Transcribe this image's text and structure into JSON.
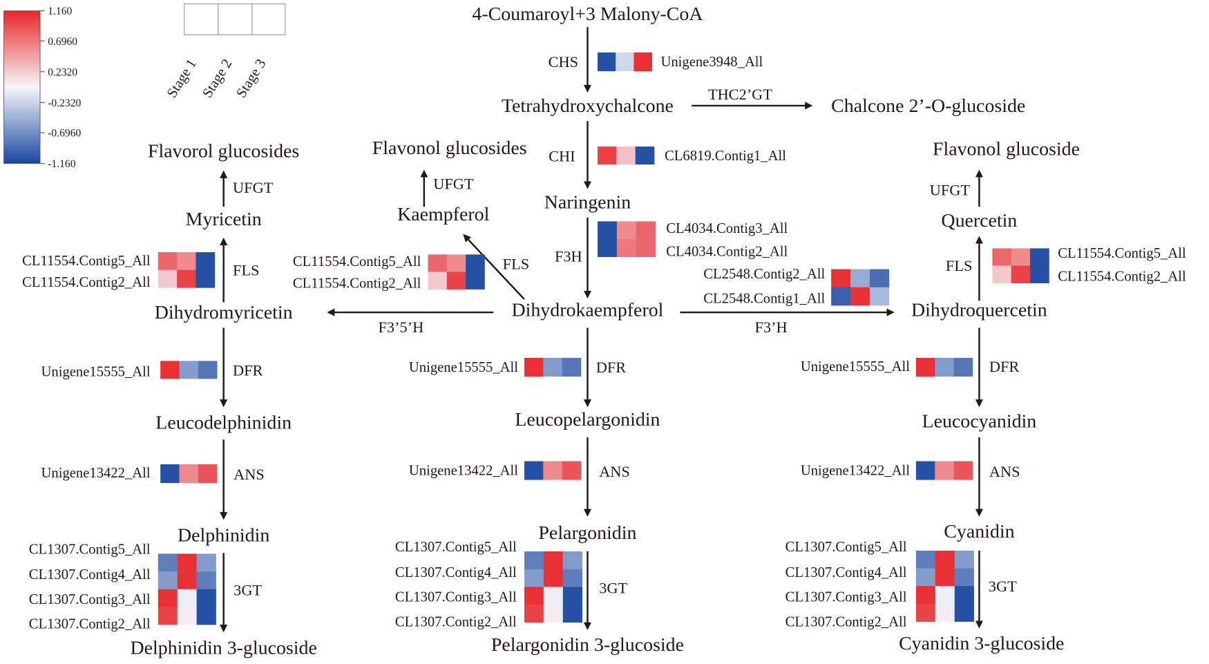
{
  "legend": {
    "ticks": [
      "1.160",
      "0.6960",
      "0.2320",
      "-0.2320",
      "-0.6960",
      "-1.160"
    ],
    "range": [
      -1.16,
      1.16
    ],
    "stages": [
      "Stage 1",
      "Stage 2",
      "Stage 3"
    ],
    "colors": {
      "low": "#1a48a0",
      "mid": "#f6f6fb",
      "high": "#e8262a"
    }
  },
  "metabolites": {
    "start": "4-Coumaroyl+3 Malony-CoA",
    "thc": "Tetrahydroxychalcone",
    "chalcone_glc": "Chalcone 2’-O-glucoside",
    "naringenin": "Naringenin",
    "dhk": "Dihydrokaempferol",
    "dhm": "Dihydromyricetin",
    "dhq": "Dihydroquercetin",
    "myricetin": "Myricetin",
    "kaempferol": "Kaempferol",
    "quercetin": "Quercetin",
    "flavorol_glc": "Flavorol glucosides",
    "flavonol_glcs": "Flavonol glucosides",
    "flavonol_glc": "Flavonol glucoside",
    "leucodelphinidin": "Leucodelphinidin",
    "leucopelargonidin": "Leucopelargonidin",
    "leucocyanidin": "Leucocyanidin",
    "delphinidin": "Delphinidin",
    "pelargonidin": "Pelargonidin",
    "cyanidin": "Cyanidin",
    "delphinidin_glc": "Delphinidin 3-glucoside",
    "pelargonidin_glc": "Pelargonidin 3-glucoside",
    "cyanidin_glc": "Cyanidin 3-glucoside"
  },
  "enzymes": {
    "chs": "CHS",
    "thc2gt": "THC2’GT",
    "chi": "CHI",
    "f3h": "F3H",
    "f35h": "F3’5’H",
    "f3ph": "F3’H",
    "fls": "FLS",
    "ufgt": "UFGT",
    "dfr": "DFR",
    "ans": "ANS",
    "gt3": "3GT"
  },
  "heatmaps": {
    "chs": {
      "genes": [
        "Unigene3948_All"
      ],
      "values": [
        [
          -1.1,
          -0.2,
          1.1
        ]
      ]
    },
    "chi": {
      "genes": [
        "CL6819.Contig1_All"
      ],
      "values": [
        [
          1.0,
          0.3,
          -1.1
        ]
      ]
    },
    "f3h": {
      "genes": [
        "CL4034.Contig3_All",
        "CL4034.Contig2_All"
      ],
      "values": [
        [
          -1.1,
          0.6,
          0.8
        ],
        [
          -1.1,
          0.7,
          0.8
        ]
      ]
    },
    "f3ph": {
      "genes": [
        "CL2548.Contig2_All",
        "CL2548.Contig1_All"
      ],
      "values": [
        [
          1.1,
          -0.5,
          -0.9
        ],
        [
          -1.0,
          1.1,
          -0.4
        ]
      ]
    },
    "fls": {
      "genes": [
        "CL11554.Contig5_All",
        "CL11554.Contig2_All"
      ],
      "values": [
        [
          0.8,
          0.6,
          -1.1
        ],
        [
          0.25,
          1.0,
          -1.1
        ]
      ]
    },
    "dfr": {
      "genes": [
        "Unigene15555_All"
      ],
      "values": [
        [
          1.1,
          -0.6,
          -0.85
        ]
      ]
    },
    "ans": {
      "genes": [
        "Unigene13422_All"
      ],
      "values": [
        [
          -1.1,
          0.6,
          0.9
        ]
      ]
    },
    "gt3": {
      "genes": [
        "CL1307.Contig5_All",
        "CL1307.Contig4_All",
        "CL1307.Contig3_All",
        "CL1307.Contig2_All"
      ],
      "values": [
        [
          -0.8,
          1.1,
          -0.6
        ],
        [
          -0.6,
          1.1,
          -0.8
        ],
        [
          1.1,
          -0.05,
          -1.1
        ],
        [
          1.0,
          0.05,
          -1.1
        ]
      ]
    }
  }
}
